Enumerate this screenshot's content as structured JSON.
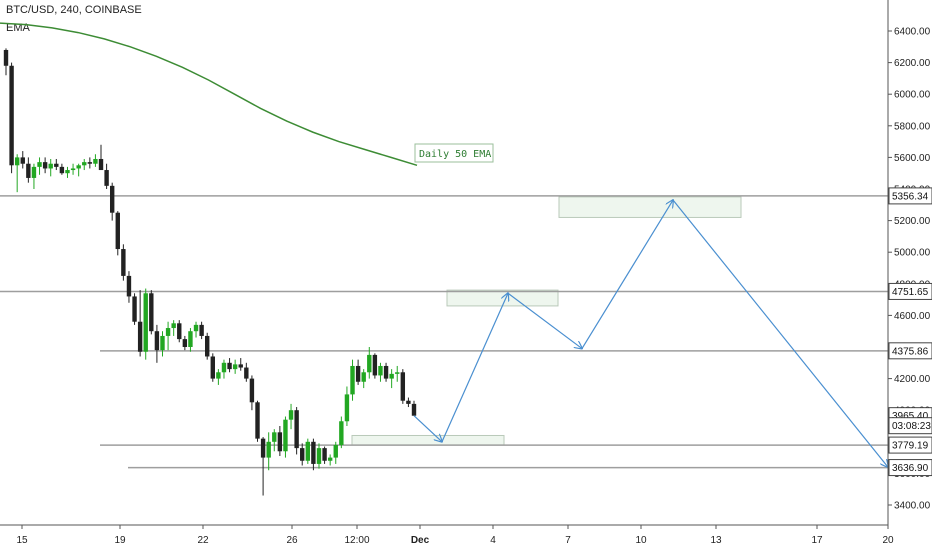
{
  "header": {
    "symbol_line": "BTC/USD, 240, COINBASE",
    "indicator": "EMA"
  },
  "colors": {
    "up": "#22a722",
    "down": "#222222",
    "ema": "#3d8c35",
    "projection": "#4a8fd0",
    "level_line": "#9e9e9e",
    "zone_fill": "#eef6ee",
    "zone_stroke": "#b9c9b9"
  },
  "chart_data": {
    "type": "candlestick",
    "y_axis": {
      "range": [
        3300,
        6700
      ],
      "ticks": [
        "3400.00",
        "3600.00",
        "3800.00",
        "4000.00",
        "4200.00",
        "4400.00",
        "4600.00",
        "4800.00",
        "5000.00",
        "5200.00",
        "5400.00",
        "5600.00",
        "5800.00",
        "6000.00",
        "6200.00",
        "6400.00"
      ],
      "tick_values": [
        3400,
        3600,
        3800,
        4000,
        4200,
        4400,
        4600,
        4800,
        5000,
        5200,
        5400,
        5600,
        5800,
        6000,
        6200,
        6400
      ]
    },
    "x_axis": {
      "ticks": [
        "15",
        "19",
        "22",
        "26",
        "12:00",
        "Dec",
        "4",
        "7",
        "10",
        "13",
        "17",
        "20"
      ]
    },
    "price_labels": [
      {
        "text": "5356.34",
        "value": 5356.34,
        "style": "level"
      },
      {
        "text": "4751.65",
        "value": 4751.65,
        "style": "level"
      },
      {
        "text": "4375.86",
        "value": 4375.86,
        "style": "level"
      },
      {
        "text": "3965.40",
        "value": 3965.4,
        "style": "last"
      },
      {
        "text": "03:08:23",
        "value": 3902,
        "style": "timer"
      },
      {
        "text": "3779.19",
        "value": 3779.19,
        "style": "level"
      },
      {
        "text": "3636.90",
        "value": 3636.9,
        "style": "level"
      }
    ],
    "levels": [
      5356.34,
      4751.65,
      4375.86,
      3779.19,
      3636.9
    ],
    "annotation": "Daily 50 EMA",
    "ema": [
      6450,
      6440,
      6420,
      6390,
      6350,
      6300,
      6240,
      6170,
      6090,
      6000,
      5910,
      5830,
      5760,
      5700,
      5650,
      5600,
      5550
    ],
    "candles": [
      [
        6280,
        6290,
        6120,
        6180
      ],
      [
        6180,
        6200,
        5500,
        5550
      ],
      [
        5550,
        5620,
        5380,
        5600
      ],
      [
        5600,
        5640,
        5530,
        5560
      ],
      [
        5560,
        5600,
        5440,
        5470
      ],
      [
        5470,
        5560,
        5400,
        5540
      ],
      [
        5540,
        5600,
        5490,
        5570
      ],
      [
        5570,
        5600,
        5500,
        5530
      ],
      [
        5530,
        5590,
        5480,
        5560
      ],
      [
        5560,
        5590,
        5520,
        5540
      ],
      [
        5540,
        5560,
        5490,
        5500
      ],
      [
        5500,
        5540,
        5470,
        5520
      ],
      [
        5520,
        5560,
        5490,
        5530
      ],
      [
        5530,
        5560,
        5480,
        5550
      ],
      [
        5550,
        5590,
        5520,
        5570
      ],
      [
        5570,
        5600,
        5530,
        5560
      ],
      [
        5560,
        5620,
        5540,
        5590
      ],
      [
        5590,
        5680,
        5540,
        5520
      ],
      [
        5520,
        5560,
        5400,
        5420
      ],
      [
        5420,
        5440,
        5200,
        5250
      ],
      [
        5250,
        5260,
        4980,
        5020
      ],
      [
        5020,
        5050,
        4820,
        4850
      ],
      [
        4850,
        4880,
        4680,
        4720
      ],
      [
        4720,
        4740,
        4540,
        4560
      ],
      [
        4560,
        4760,
        4340,
        4370
      ],
      [
        4370,
        4770,
        4320,
        4740
      ],
      [
        4740,
        4760,
        4480,
        4500
      ],
      [
        4500,
        4540,
        4300,
        4380
      ],
      [
        4380,
        4500,
        4340,
        4470
      ],
      [
        4470,
        4560,
        4380,
        4520
      ],
      [
        4520,
        4570,
        4470,
        4550
      ],
      [
        4550,
        4570,
        4430,
        4450
      ],
      [
        4450,
        4470,
        4380,
        4400
      ],
      [
        4400,
        4520,
        4370,
        4500
      ],
      [
        4500,
        4560,
        4460,
        4540
      ],
      [
        4540,
        4560,
        4450,
        4470
      ],
      [
        4470,
        4490,
        4320,
        4340
      ],
      [
        4340,
        4360,
        4180,
        4200
      ],
      [
        4200,
        4260,
        4160,
        4240
      ],
      [
        4240,
        4320,
        4200,
        4300
      ],
      [
        4300,
        4330,
        4240,
        4260
      ],
      [
        4260,
        4320,
        4230,
        4290
      ],
      [
        4290,
        4330,
        4250,
        4270
      ],
      [
        4270,
        4300,
        4180,
        4200
      ],
      [
        4200,
        4220,
        4000,
        4050
      ],
      [
        4050,
        4060,
        3800,
        3820
      ],
      [
        3820,
        3830,
        3460,
        3700
      ],
      [
        3700,
        3860,
        3620,
        3800
      ],
      [
        3800,
        3880,
        3740,
        3860
      ],
      [
        3860,
        3900,
        3710,
        3740
      ],
      [
        3740,
        3960,
        3700,
        3940
      ],
      [
        3940,
        4040,
        3880,
        4000
      ],
      [
        4000,
        4020,
        3720,
        3760
      ],
      [
        3760,
        3790,
        3650,
        3680
      ],
      [
        3680,
        3820,
        3660,
        3800
      ],
      [
        3800,
        3820,
        3620,
        3660
      ],
      [
        3660,
        3790,
        3630,
        3760
      ],
      [
        3760,
        3770,
        3660,
        3680
      ],
      [
        3680,
        3720,
        3650,
        3700
      ],
      [
        3700,
        3800,
        3660,
        3780
      ],
      [
        3780,
        3960,
        3760,
        3930
      ],
      [
        3930,
        4150,
        3900,
        4100
      ],
      [
        4100,
        4320,
        4060,
        4280
      ],
      [
        4280,
        4320,
        4160,
        4180
      ],
      [
        4180,
        4260,
        4140,
        4240
      ],
      [
        4240,
        4400,
        4200,
        4350
      ],
      [
        4350,
        4360,
        4200,
        4220
      ],
      [
        4220,
        4300,
        4180,
        4280
      ],
      [
        4280,
        4300,
        4180,
        4200
      ],
      [
        4200,
        4260,
        4140,
        4230
      ],
      [
        4230,
        4280,
        4180,
        4240
      ],
      [
        4240,
        4260,
        4040,
        4060
      ],
      [
        4060,
        4080,
        4020,
        4040
      ],
      [
        4040,
        4060,
        3980,
        3965
      ]
    ],
    "projection": [
      {
        "date": "Dec",
        "value": 3800
      },
      {
        "date": "4",
        "value": 4740
      },
      {
        "date": "7",
        "value": 4390
      },
      {
        "date": "10",
        "value": 5330
      },
      {
        "date": "20",
        "value": 3640
      }
    ],
    "zones": [
      {
        "label": "",
        "low": 3780,
        "high": 3840
      },
      {
        "label": "",
        "low": 4660,
        "high": 4760
      },
      {
        "label": "",
        "low": 5220,
        "high": 5350
      }
    ]
  }
}
